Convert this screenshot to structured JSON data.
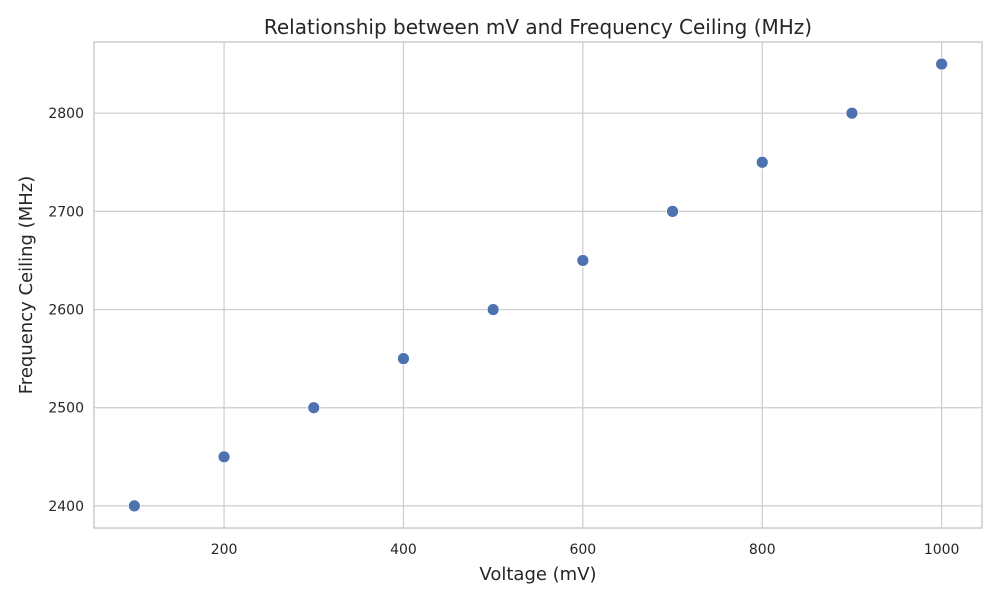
{
  "chart_data": {
    "type": "scatter",
    "title": "Relationship between mV and Frequency Ceiling (MHz)",
    "xlabel": "Voltage (mV)",
    "ylabel": "Frequency Ceiling (MHz)",
    "x": [
      100,
      200,
      300,
      400,
      500,
      600,
      700,
      800,
      900,
      1000
    ],
    "y": [
      2400,
      2450,
      2500,
      2550,
      2600,
      2650,
      2700,
      2750,
      2800,
      2850
    ],
    "xlim": [
      55,
      1045
    ],
    "ylim": [
      2377.5,
      2872.5
    ],
    "xticks": [
      200,
      400,
      600,
      800,
      1000
    ],
    "yticks": [
      2400,
      2500,
      2600,
      2700,
      2800
    ],
    "grid": true,
    "marker_color": "#4c72b0"
  }
}
